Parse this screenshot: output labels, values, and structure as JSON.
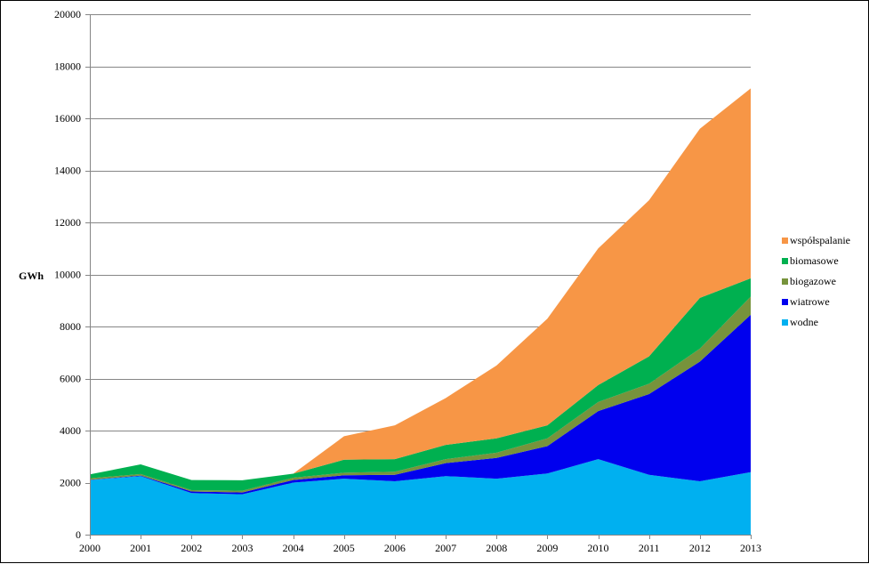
{
  "chart_data": {
    "type": "area",
    "stacked": true,
    "ylabel": "GWh",
    "xlabel": "",
    "title": "",
    "ylim": [
      0,
      20000
    ],
    "ystep": 2000,
    "grid": true,
    "legend_position": "right",
    "x": [
      "2000",
      "2001",
      "2002",
      "2003",
      "2004",
      "2005",
      "2006",
      "2007",
      "2008",
      "2009",
      "2010",
      "2011",
      "2012",
      "2013"
    ],
    "series": [
      {
        "name": "wodne",
        "color": "#00b0f0",
        "values": [
          2100,
          2250,
          1600,
          1550,
          2000,
          2150,
          2050,
          2250,
          2150,
          2350,
          2900,
          2300,
          2050,
          2400
        ]
      },
      {
        "name": "wiatrowe",
        "color": "#0000ee",
        "values": [
          5,
          20,
          60,
          70,
          100,
          130,
          250,
          500,
          800,
          1050,
          1850,
          3100,
          4600,
          6050
        ]
      },
      {
        "name": "biogazowe",
        "color": "#77933c",
        "values": [
          60,
          60,
          50,
          70,
          90,
          100,
          120,
          150,
          200,
          300,
          350,
          400,
          500,
          700
        ]
      },
      {
        "name": "biomasowe",
        "color": "#00b050",
        "values": [
          150,
          370,
          390,
          400,
          150,
          500,
          480,
          550,
          550,
          500,
          650,
          1050,
          1950,
          700
        ]
      },
      {
        "name": "współspalanie",
        "color": "#f79646",
        "values": [
          0,
          0,
          0,
          0,
          0,
          900,
          1300,
          1800,
          2800,
          4100,
          5250,
          6000,
          6500,
          7300
        ]
      }
    ],
    "legend_order": [
      "współspalanie",
      "biomasowe",
      "biogazowe",
      "wiatrowe",
      "wodne"
    ]
  }
}
